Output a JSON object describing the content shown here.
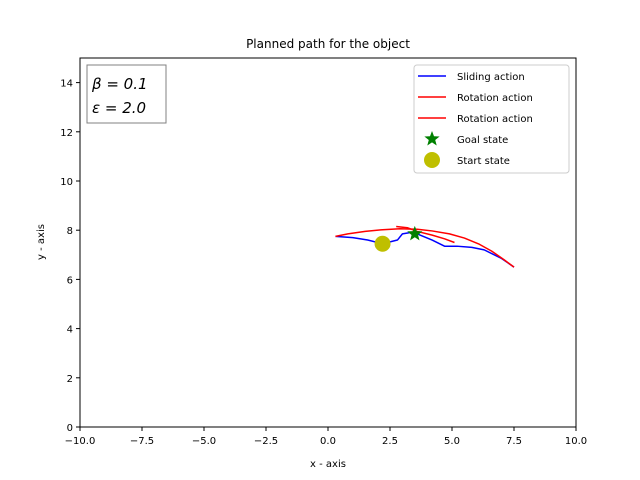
{
  "chart_data": {
    "type": "line",
    "title": "Planned path for the object",
    "xlabel": "x - axis",
    "ylabel": "y - axis",
    "xlim": [
      -10,
      10
    ],
    "ylim": [
      0,
      15
    ],
    "xticks": [
      -10,
      -7.5,
      -5,
      -2.5,
      0,
      2.5,
      5,
      7.5,
      10
    ],
    "xtick_labels": [
      "−10.0",
      "−7.5",
      "−5.0",
      "−2.5",
      "0.0",
      "2.5",
      "5.0",
      "7.5",
      "10.0"
    ],
    "yticks": [
      0,
      2,
      4,
      6,
      8,
      10,
      12,
      14
    ],
    "ytick_labels": [
      "0",
      "2",
      "4",
      "6",
      "8",
      "10",
      "12",
      "14"
    ],
    "grid": false,
    "legend_position": "top-right",
    "annotation": {
      "lines": [
        "β = 0.1",
        "ε = 2.0"
      ],
      "position": "top-left"
    },
    "series": [
      {
        "name": "Sliding action",
        "kind": "line",
        "color": "#0000ff",
        "points": [
          [
            0.3,
            7.75
          ],
          [
            1.0,
            7.7
          ],
          [
            1.6,
            7.6
          ],
          [
            2.2,
            7.45
          ],
          [
            2.8,
            7.6
          ],
          [
            3.0,
            7.85
          ],
          [
            3.3,
            7.9
          ],
          [
            3.6,
            7.85
          ],
          [
            4.2,
            7.6
          ],
          [
            4.7,
            7.35
          ],
          [
            5.2,
            7.35
          ],
          [
            5.8,
            7.3
          ],
          [
            6.3,
            7.2
          ],
          [
            7.0,
            6.85
          ],
          [
            7.5,
            6.5
          ]
        ]
      },
      {
        "name": "Rotation action",
        "kind": "line",
        "color": "#ff0000",
        "points": [
          [
            0.3,
            7.75
          ],
          [
            0.8,
            7.85
          ],
          [
            1.5,
            7.95
          ],
          [
            2.2,
            8.02
          ],
          [
            2.9,
            8.06
          ],
          [
            3.6,
            8.04
          ],
          [
            4.2,
            7.97
          ],
          [
            4.9,
            7.85
          ],
          [
            5.5,
            7.68
          ],
          [
            6.1,
            7.43
          ],
          [
            6.6,
            7.15
          ],
          [
            7.1,
            6.8
          ],
          [
            7.5,
            6.5
          ]
        ]
      },
      {
        "name": "Rotation action",
        "kind": "line",
        "color": "#ff0000",
        "points": [
          [
            2.75,
            8.15
          ],
          [
            3.2,
            8.1
          ],
          [
            3.6,
            7.95
          ],
          [
            4.2,
            7.8
          ],
          [
            4.7,
            7.65
          ],
          [
            5.1,
            7.5
          ]
        ]
      },
      {
        "name": "Goal state",
        "kind": "marker",
        "marker": "star",
        "color": "#008000",
        "points": [
          [
            3.5,
            7.85
          ]
        ]
      },
      {
        "name": "Start state",
        "kind": "marker",
        "marker": "circle",
        "color": "#bfbf00",
        "points": [
          [
            2.2,
            7.45
          ]
        ]
      }
    ]
  }
}
